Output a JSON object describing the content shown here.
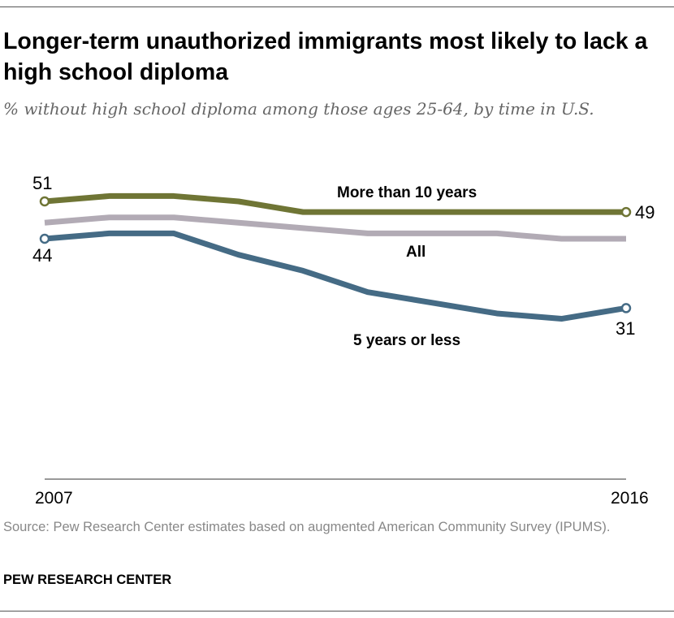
{
  "title": "Longer-term unauthorized immigrants most likely to lack a high school diploma",
  "subtitle": "% without high school diploma among those ages 25-64, by time in U.S.",
  "source": "Source: Pew Research Center estimates based on augmented American Community Survey (IPUMS).",
  "brand": "PEW RESEARCH CENTER",
  "chart_data": {
    "type": "line",
    "x": [
      2007,
      2008,
      2009,
      2010,
      2011,
      2012,
      2013,
      2014,
      2015,
      2016
    ],
    "x_tick_labels": [
      "2007",
      "2016"
    ],
    "ylim": [
      0,
      55
    ],
    "grid": false,
    "series": [
      {
        "name": "More than 10 years",
        "color": "#6f7535",
        "values": [
          51,
          52,
          52,
          51,
          49,
          49,
          49,
          49,
          49,
          49
        ],
        "start_label": "51",
        "end_label": "49"
      },
      {
        "name": "All",
        "color": "#b2abb5",
        "values": [
          47,
          48,
          48,
          47,
          46,
          45,
          45,
          45,
          44,
          44
        ]
      },
      {
        "name": "5 years or less",
        "color": "#456b85",
        "values": [
          44,
          45,
          45,
          41,
          38,
          34,
          32,
          30,
          29,
          31
        ],
        "start_label": "44",
        "end_label": "31"
      }
    ]
  }
}
